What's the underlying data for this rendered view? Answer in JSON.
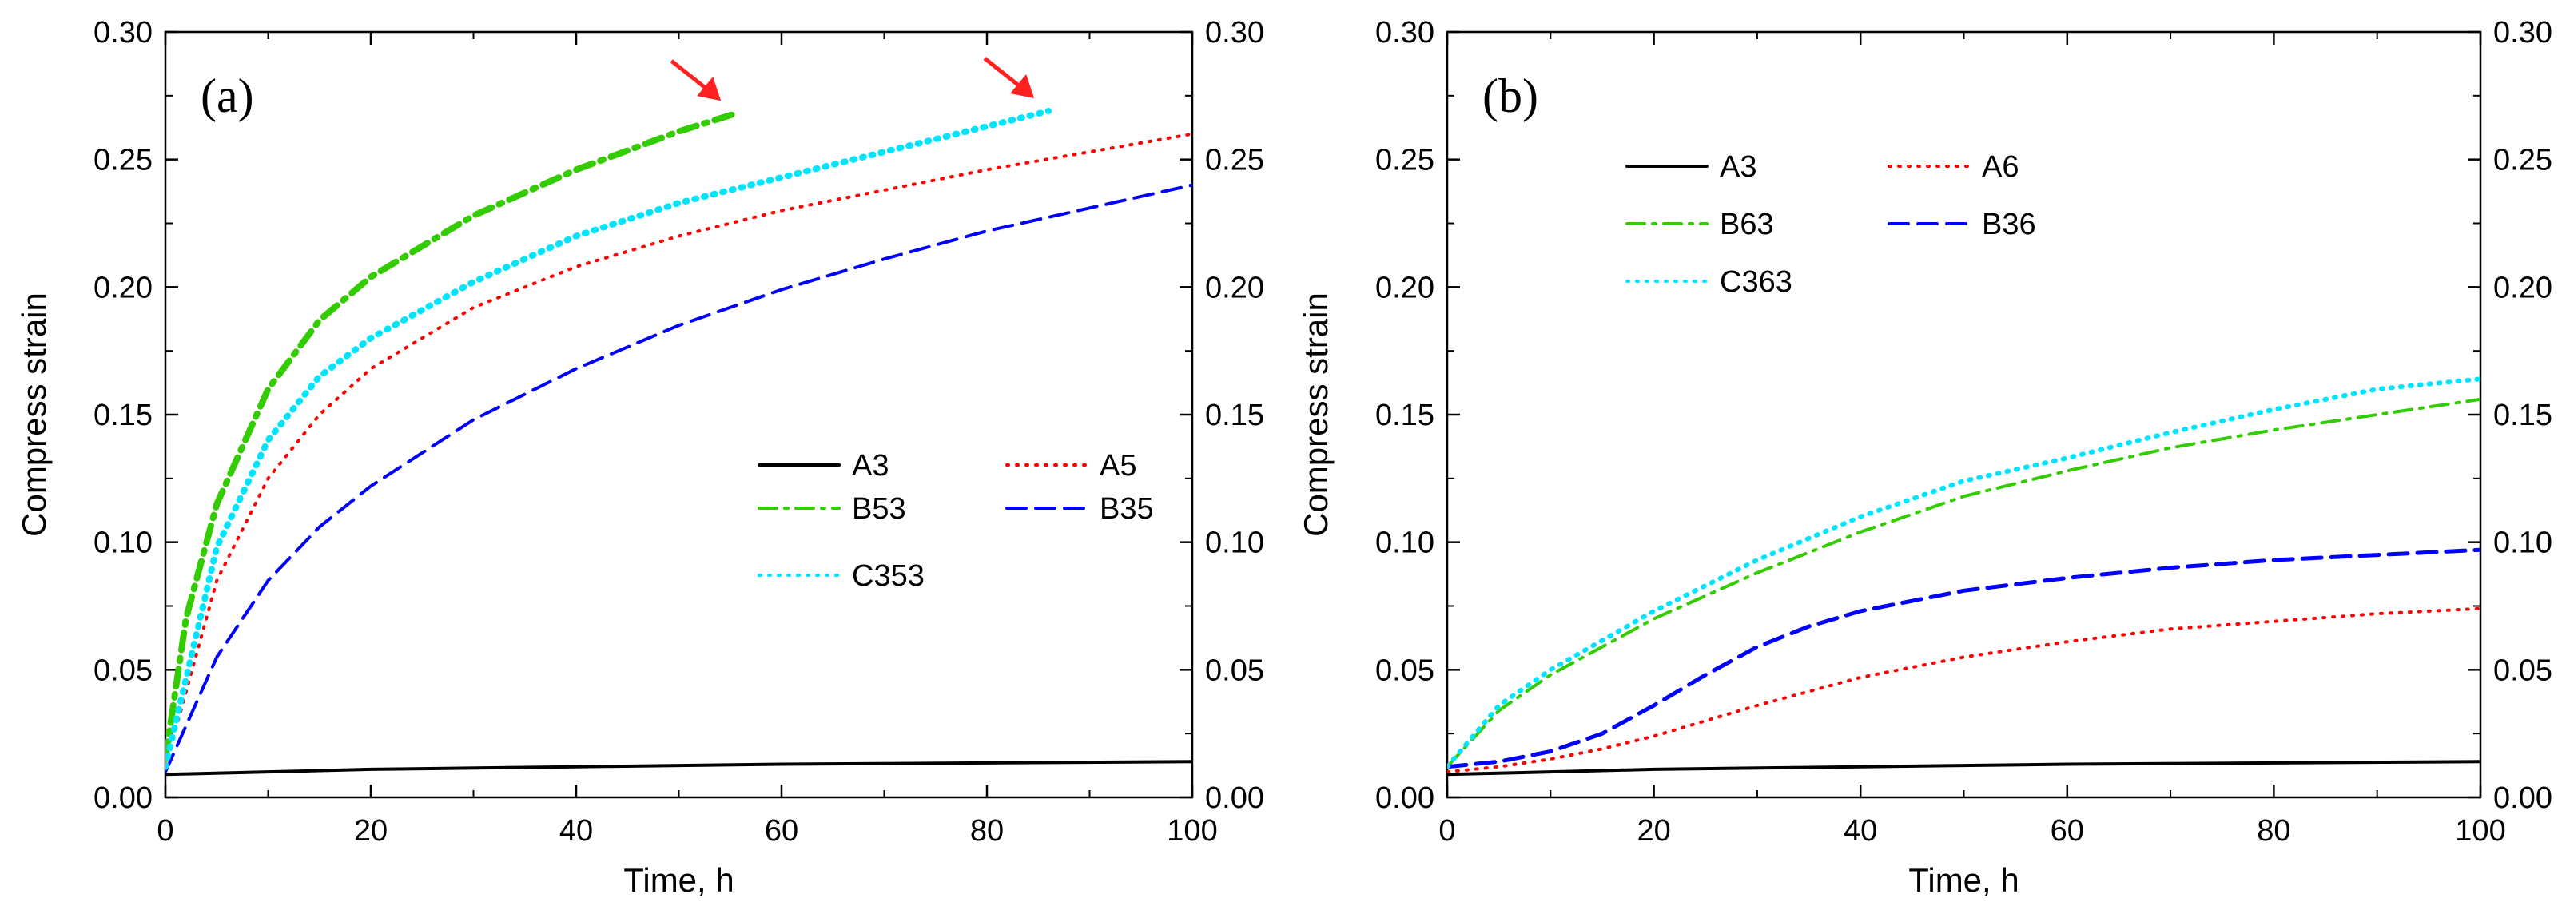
{
  "chart_data": [
    {
      "type": "line",
      "panel_label": "(a)",
      "xlabel": "Time, h",
      "ylabel": "Compress strain",
      "xlim": [
        0,
        100
      ],
      "ylim": [
        0,
        0.3
      ],
      "x_ticks": [
        "0",
        "20",
        "40",
        "60",
        "80",
        "100"
      ],
      "y_ticks": [
        "0.00",
        "0.05",
        "0.10",
        "0.15",
        "0.20",
        "0.25",
        "0.30"
      ],
      "right_axis_mirrored": true,
      "grid": false,
      "legend_position": "center-right",
      "series": [
        {
          "name": "A3",
          "color": "#000000",
          "style": "solid",
          "x": [
            0,
            10,
            20,
            40,
            60,
            80,
            100
          ],
          "y": [
            0.009,
            0.01,
            0.011,
            0.012,
            0.013,
            0.0135,
            0.014
          ]
        },
        {
          "name": "A5",
          "color": "#ff0000",
          "style": "dotted",
          "x": [
            0,
            5,
            10,
            15,
            20,
            30,
            40,
            50,
            60,
            70,
            80,
            90,
            100
          ],
          "y": [
            0.012,
            0.085,
            0.125,
            0.15,
            0.168,
            0.192,
            0.208,
            0.22,
            0.23,
            0.238,
            0.246,
            0.253,
            0.26
          ]
        },
        {
          "name": "B53",
          "color": "#33cc00",
          "style": "dashdot",
          "x": [
            0,
            2,
            5,
            10,
            15,
            20,
            30,
            40,
            50,
            55.5
          ],
          "y": [
            0.015,
            0.07,
            0.115,
            0.16,
            0.187,
            0.204,
            0.228,
            0.246,
            0.261,
            0.268
          ]
        },
        {
          "name": "B35",
          "color": "#0000ff",
          "style": "dashed",
          "x": [
            0,
            5,
            10,
            15,
            20,
            30,
            40,
            50,
            60,
            70,
            80,
            90,
            100
          ],
          "y": [
            0.01,
            0.055,
            0.085,
            0.106,
            0.122,
            0.148,
            0.168,
            0.185,
            0.199,
            0.211,
            0.222,
            0.231,
            0.24
          ]
        },
        {
          "name": "C353",
          "color": "#00e5ff",
          "style": "dotted",
          "x": [
            0,
            5,
            10,
            15,
            20,
            30,
            40,
            50,
            60,
            70,
            80,
            86
          ],
          "y": [
            0.012,
            0.098,
            0.14,
            0.165,
            0.18,
            0.202,
            0.22,
            0.233,
            0.243,
            0.253,
            0.263,
            0.269
          ]
        }
      ],
      "annotations": [
        "end-of-test arrow at B53",
        "end-of-test arrow at C353"
      ]
    },
    {
      "type": "line",
      "panel_label": "(b)",
      "xlabel": "Time, h",
      "ylabel": "Compress strain",
      "xlim": [
        0,
        100
      ],
      "ylim": [
        0,
        0.3
      ],
      "x_ticks": [
        "0",
        "20",
        "40",
        "60",
        "80",
        "100"
      ],
      "y_ticks": [
        "0.00",
        "0.05",
        "0.10",
        "0.15",
        "0.20",
        "0.25",
        "0.30"
      ],
      "right_axis_mirrored": true,
      "grid": false,
      "legend_position": "top-left",
      "series": [
        {
          "name": "A3",
          "color": "#000000",
          "style": "solid",
          "x": [
            0,
            10,
            20,
            40,
            60,
            80,
            100
          ],
          "y": [
            0.009,
            0.01,
            0.011,
            0.012,
            0.013,
            0.0135,
            0.014
          ]
        },
        {
          "name": "A6",
          "color": "#ff0000",
          "style": "dotted",
          "x": [
            0,
            5,
            10,
            15,
            20,
            25,
            30,
            40,
            50,
            60,
            70,
            80,
            90,
            100
          ],
          "y": [
            0.01,
            0.012,
            0.015,
            0.019,
            0.024,
            0.03,
            0.036,
            0.047,
            0.055,
            0.061,
            0.066,
            0.069,
            0.072,
            0.074
          ]
        },
        {
          "name": "B63",
          "color": "#33cc00",
          "style": "dashdot",
          "x": [
            0,
            5,
            10,
            20,
            30,
            40,
            50,
            60,
            70,
            80,
            90,
            100
          ],
          "y": [
            0.012,
            0.034,
            0.048,
            0.07,
            0.088,
            0.104,
            0.118,
            0.128,
            0.137,
            0.144,
            0.15,
            0.156
          ]
        },
        {
          "name": "B36",
          "color": "#0000ff",
          "style": "dashed",
          "x": [
            0,
            5,
            10,
            15,
            20,
            25,
            30,
            35,
            40,
            50,
            60,
            70,
            80,
            90,
            100
          ],
          "y": [
            0.012,
            0.014,
            0.018,
            0.025,
            0.036,
            0.048,
            0.059,
            0.067,
            0.073,
            0.081,
            0.086,
            0.09,
            0.093,
            0.095,
            0.097
          ]
        },
        {
          "name": "C363",
          "color": "#00e5ff",
          "style": "dotted",
          "x": [
            0,
            5,
            10,
            20,
            30,
            40,
            50,
            60,
            70,
            80,
            90,
            100
          ],
          "y": [
            0.012,
            0.036,
            0.05,
            0.073,
            0.093,
            0.11,
            0.124,
            0.133,
            0.143,
            0.152,
            0.16,
            0.164
          ]
        }
      ],
      "annotations": []
    }
  ]
}
